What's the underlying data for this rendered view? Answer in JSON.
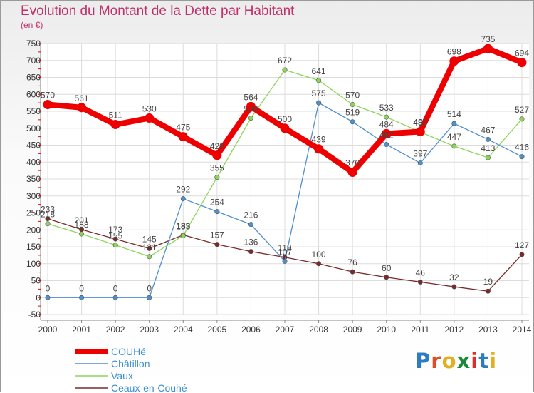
{
  "title": "Evolution du Montant de la Dette par Habitant",
  "unit": "(en €)",
  "logo": {
    "text": "Proxiti",
    "colors": [
      "#2f7bbf",
      "#d8502a",
      "#e0b020",
      "#1a8a3a",
      "#d8302a",
      "#2f7bbf",
      "#e0b020"
    ]
  },
  "chart_data": {
    "type": "line",
    "title": "Evolution du Montant de la Dette par Habitant",
    "subtitle": "(en €)",
    "xlabel": "",
    "ylabel": "",
    "ylim": [
      -50,
      750
    ],
    "y_ticks": [
      -50,
      0,
      50,
      100,
      150,
      200,
      250,
      300,
      350,
      400,
      450,
      500,
      550,
      600,
      650,
      700,
      750
    ],
    "grid": true,
    "legend_position": "bottom-left",
    "x": [
      "2000",
      "2001",
      "2002",
      "2003",
      "2004",
      "2005",
      "2006",
      "2007",
      "2008",
      "2009",
      "2010",
      "2011",
      "2012",
      "2013",
      "2014"
    ],
    "series": [
      {
        "name": "COUHé",
        "color": "#ee0000",
        "values": [
          570,
          561,
          511,
          530,
          475,
          420,
          564,
          500,
          439,
          370,
          484,
          490,
          698,
          735,
          694
        ],
        "labels": [
          "570",
          "561",
          "511",
          "530",
          "475",
          "420",
          "564",
          "500",
          "439",
          "370",
          "484",
          "490",
          "698",
          "735",
          "694"
        ]
      },
      {
        "name": "Châtillon",
        "color": "#4f8fcc",
        "values": [
          0,
          0,
          0,
          0,
          292,
          254,
          216,
          107,
          575,
          519,
          452,
          397,
          514,
          467,
          416
        ],
        "labels": [
          "0",
          "0",
          "0",
          "0",
          "292",
          "254",
          "216",
          "107",
          "575",
          "519",
          "452",
          "397",
          "514",
          "467",
          "416"
        ]
      },
      {
        "name": "Vaux",
        "color": "#8ed45a",
        "values": [
          218,
          188,
          155,
          121,
          183,
          355,
          530,
          672,
          641,
          570,
          533,
          489,
          447,
          413,
          527
        ],
        "labels": [
          "218",
          "188",
          "155",
          "121",
          "183",
          "355",
          "530",
          "672",
          "641",
          "570",
          "533",
          "489",
          "447",
          "413",
          "527"
        ]
      },
      {
        "name": "Ceaux-en-Couhé",
        "color": "#7a2a2a",
        "values": [
          233,
          201,
          173,
          145,
          185,
          157,
          136,
          119,
          100,
          76,
          60,
          46,
          32,
          19,
          127
        ],
        "labels": [
          "233",
          "201",
          "173",
          "145",
          "185",
          "157",
          "136",
          "119",
          "100",
          "76",
          "60",
          "46",
          "32",
          "19",
          "127"
        ]
      }
    ]
  }
}
